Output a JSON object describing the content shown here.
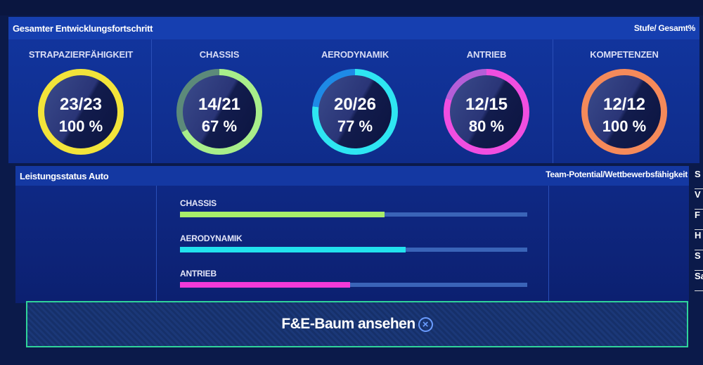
{
  "overview": {
    "title": "Gesamter Entwicklungsfortschritt",
    "right_label": "Stufe/ Gesamt%",
    "categories": [
      {
        "label": "STRAPAZIERFÄHIGKEIT",
        "level": "23/23",
        "percent": "100 %",
        "progress": 1.0,
        "color": "#f2e43a",
        "dim": "#f2e43a"
      },
      {
        "label": "CHASSIS",
        "level": "14/21",
        "percent": "67 %",
        "progress": 0.67,
        "color": "#a8ee8a",
        "dim": "#5c8a7a"
      },
      {
        "label": "AERODYNAMIK",
        "level": "20/26",
        "percent": "77 %",
        "progress": 0.77,
        "color": "#2ee6f2",
        "dim": "#1e8ae6"
      },
      {
        "label": "ANTRIEB",
        "level": "12/15",
        "percent": "80 %",
        "progress": 0.8,
        "color": "#f04ee0",
        "dim": "#b45ed8"
      },
      {
        "label": "KOMPETENZEN",
        "level": "12/12",
        "percent": "100 %",
        "progress": 1.0,
        "color": "#f58a5a",
        "dim": "#f58a5a"
      }
    ]
  },
  "performance": {
    "title": "Leistungsstatus Auto",
    "right_label": "Team-Potential/Wettbewerbsfähigkeit",
    "bars": [
      {
        "label": "CHASSIS",
        "value": 0.59,
        "color": "#a8ee6a"
      },
      {
        "label": "AERODYNAMIK",
        "value": 0.65,
        "color": "#22e2ee"
      },
      {
        "label": "ANTRIEB",
        "value": 0.49,
        "color": "#f23ad8"
      }
    ]
  },
  "action_button": {
    "label": "F&E-Baum ansehen",
    "icon": "cross-button-icon"
  },
  "edge_menu": [
    "S",
    "V",
    "F",
    "H",
    "S",
    "Sa"
  ]
}
